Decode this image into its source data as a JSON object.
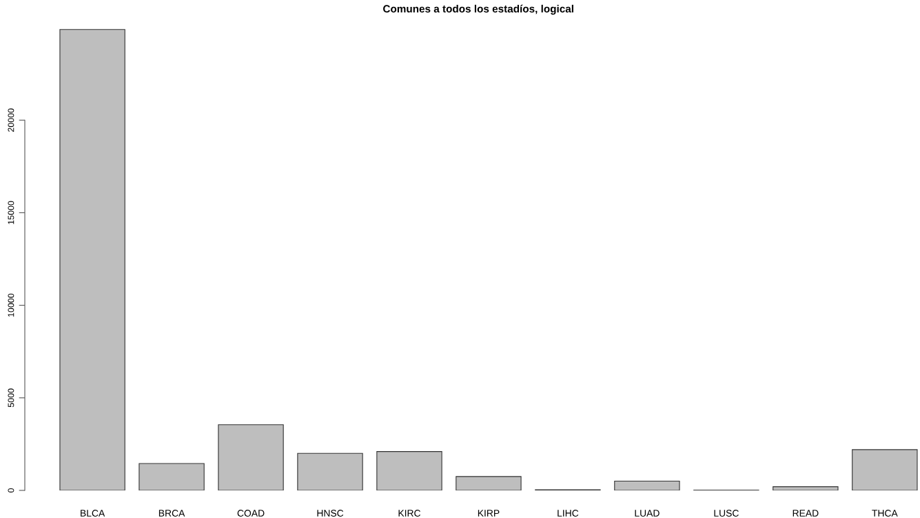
{
  "chart_data": {
    "type": "bar",
    "title": "Comunes a todos los estadíos, logical",
    "categories": [
      "BLCA",
      "BRCA",
      "COAD",
      "HNSC",
      "KIRC",
      "KIRP",
      "LIHC",
      "LUAD",
      "LUSC",
      "READ",
      "THCA"
    ],
    "values": [
      24900,
      1450,
      3550,
      2000,
      2100,
      750,
      30,
      500,
      20,
      200,
      2200
    ],
    "color": "#bebebe",
    "ylim": [
      0,
      25000
    ],
    "yticks": [
      0,
      5000,
      10000,
      15000,
      20000
    ],
    "grid": false
  }
}
